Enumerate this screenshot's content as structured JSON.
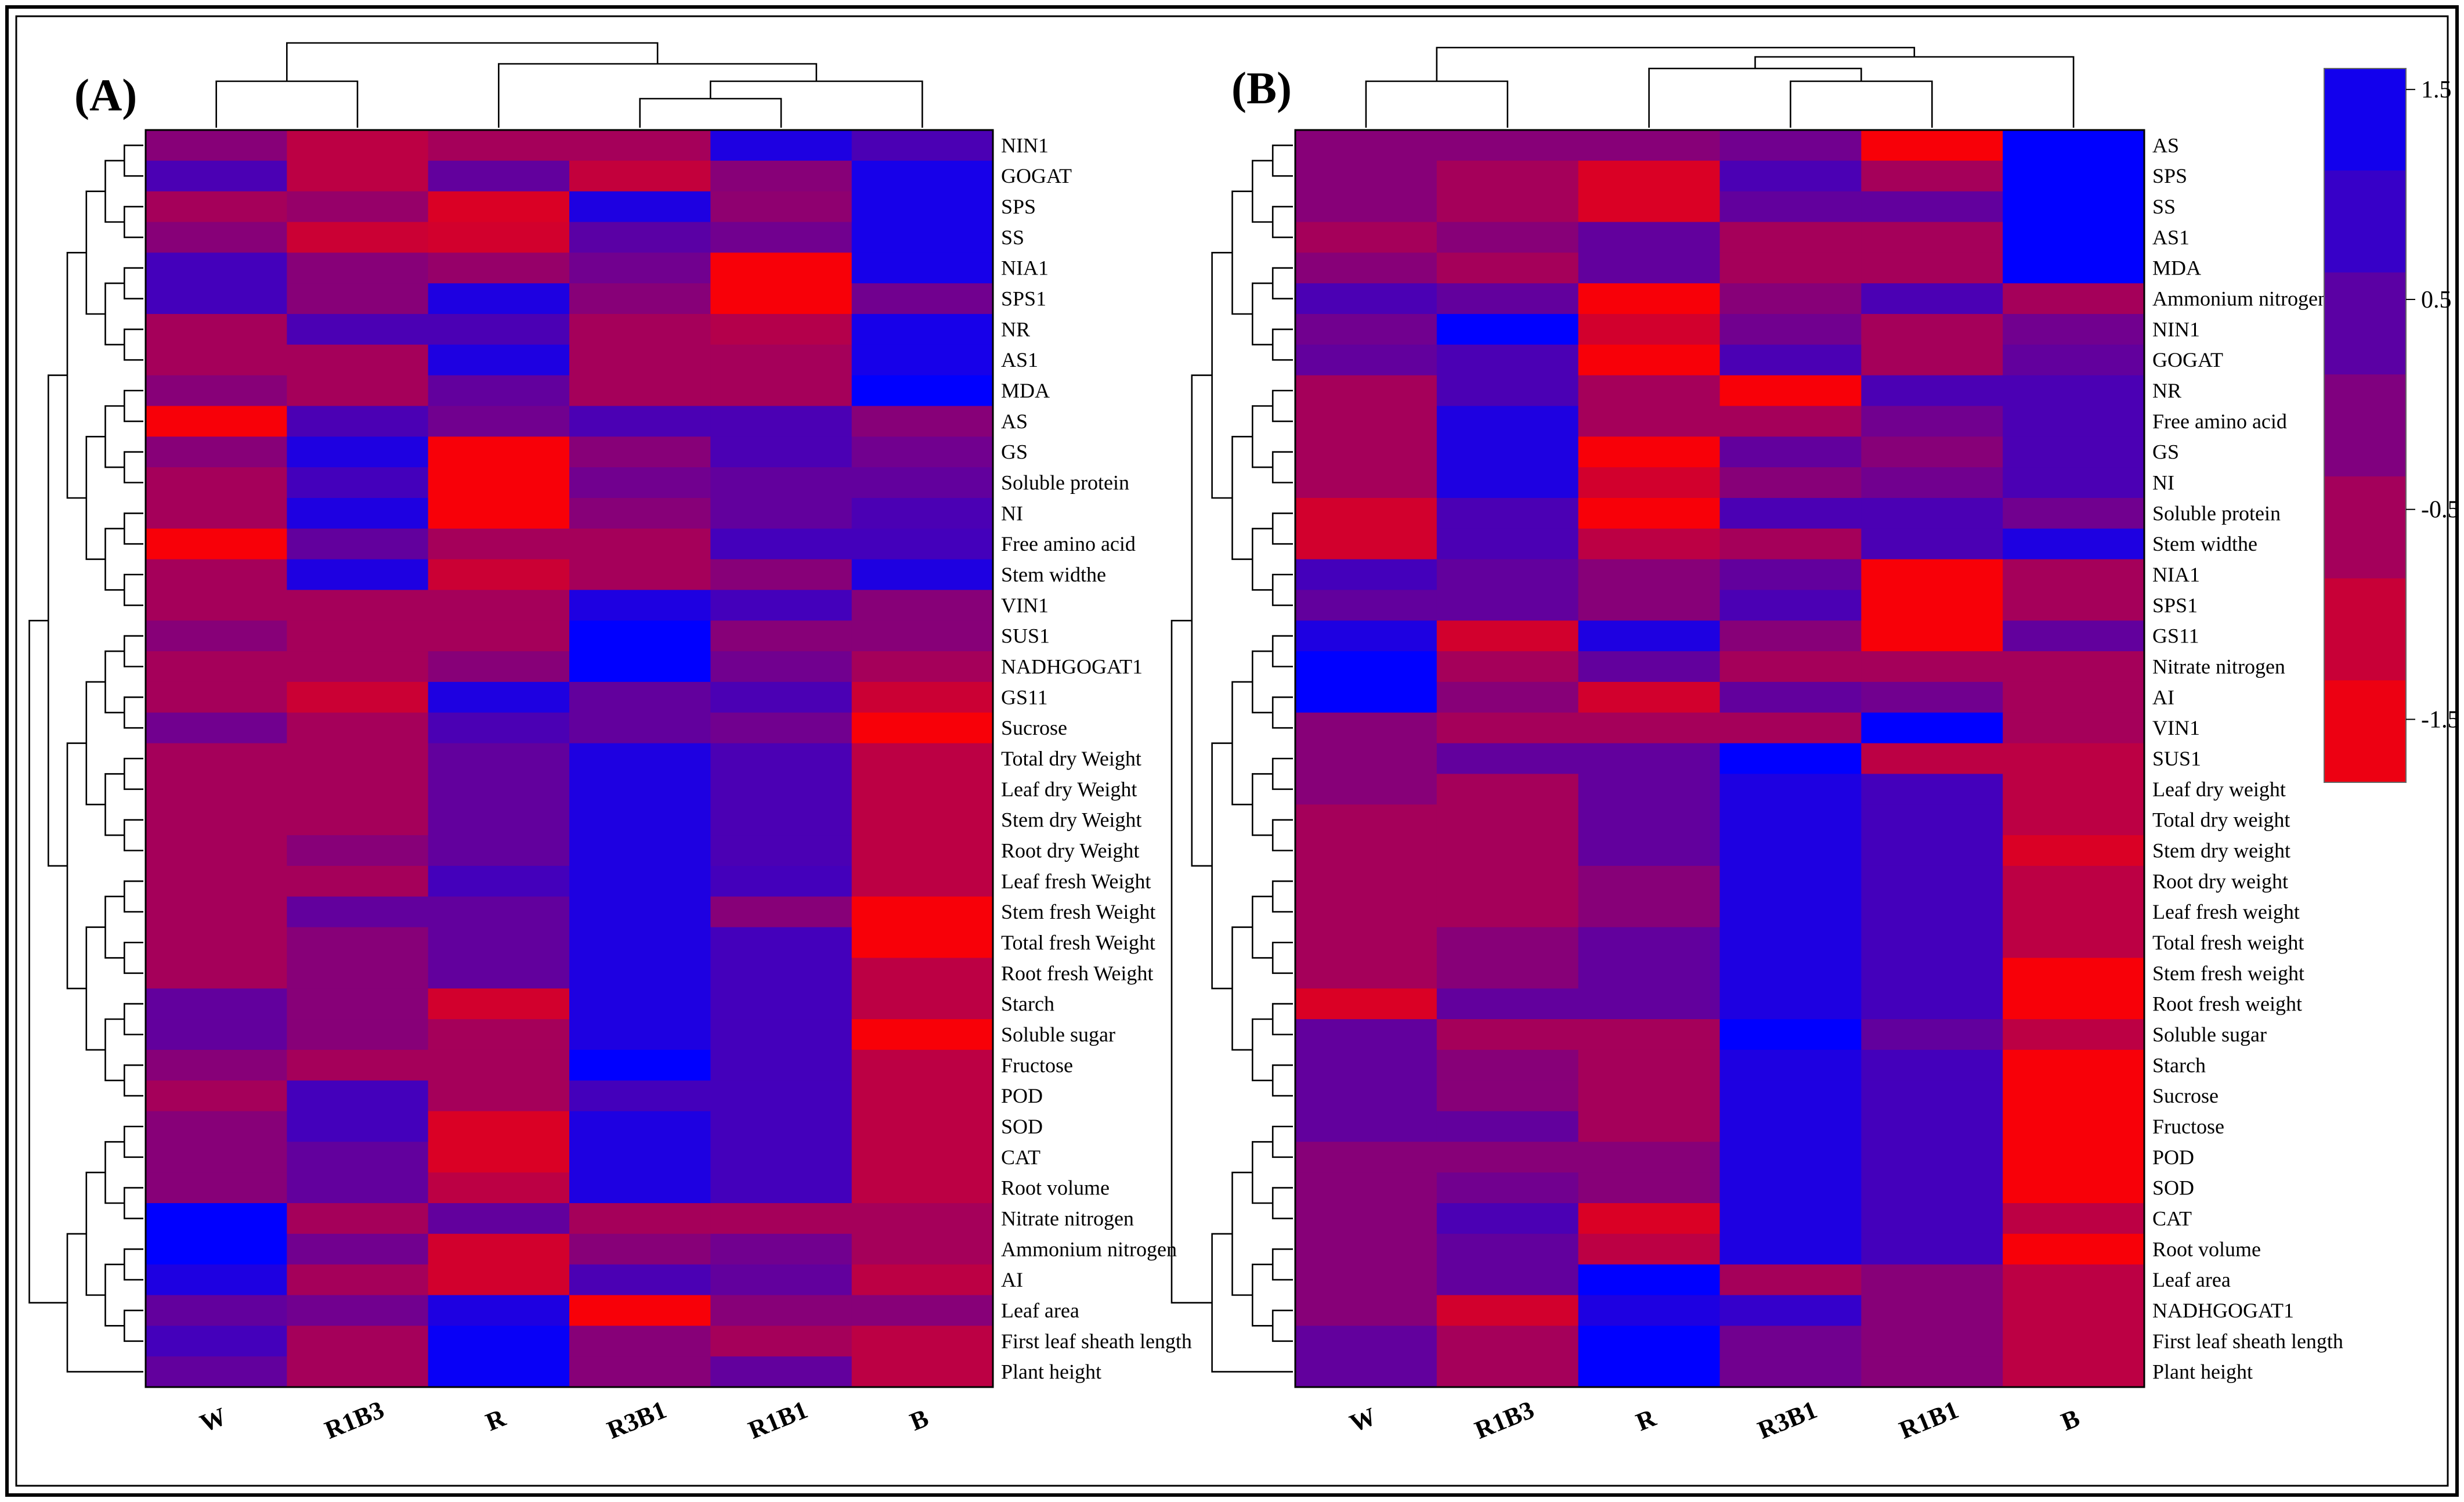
{
  "chart_data": [
    {
      "type": "heatmap",
      "panel_label": "(A)",
      "columns": [
        "W",
        "R1B3",
        "R",
        "R3B1",
        "R1B1",
        "B"
      ],
      "rows": [
        {
          "label": "NIN1",
          "values": [
            -0.2,
            -0.9,
            -0.6,
            -0.6,
            1.2,
            0.6
          ]
        },
        {
          "label": "GOGAT",
          "values": [
            0.6,
            -0.9,
            0.3,
            -1.0,
            -0.2,
            1.3
          ]
        },
        {
          "label": "SPS",
          "values": [
            -0.6,
            -0.4,
            -1.3,
            1.2,
            -0.3,
            1.3
          ]
        },
        {
          "label": "SS",
          "values": [
            -0.2,
            -1.1,
            -1.2,
            0.4,
            0.1,
            1.3
          ]
        },
        {
          "label": "NIA1",
          "values": [
            0.7,
            -0.2,
            -0.4,
            0.1,
            -1.7,
            1.3
          ]
        },
        {
          "label": "SPS1",
          "values": [
            0.7,
            -0.2,
            1.2,
            -0.2,
            -1.7,
            0.1
          ]
        },
        {
          "label": "NR",
          "values": [
            -0.6,
            0.6,
            0.6,
            -0.6,
            -0.8,
            1.3
          ]
        },
        {
          "label": "AS1",
          "values": [
            -0.6,
            -0.6,
            1.2,
            -0.6,
            -0.6,
            1.3
          ]
        },
        {
          "label": "MDA",
          "values": [
            -0.2,
            -0.6,
            0.3,
            -0.6,
            -0.6,
            1.6
          ]
        },
        {
          "label": "AS",
          "values": [
            -1.7,
            0.6,
            0.1,
            0.6,
            0.6,
            -0.2
          ]
        },
        {
          "label": "GS",
          "values": [
            -0.2,
            1.2,
            -1.7,
            -0.2,
            0.6,
            0.1
          ]
        },
        {
          "label": "Soluble protein",
          "values": [
            -0.6,
            0.7,
            -1.7,
            0.1,
            0.3,
            0.3
          ]
        },
        {
          "label": "NI",
          "values": [
            -0.6,
            1.2,
            -1.7,
            -0.2,
            0.3,
            0.6
          ]
        },
        {
          "label": "Free amino acid",
          "values": [
            -1.7,
            0.3,
            -0.6,
            -0.6,
            0.7,
            0.7
          ]
        },
        {
          "label": "Stem widthe",
          "values": [
            -0.6,
            1.2,
            -1.1,
            -0.6,
            -0.2,
            1.2
          ]
        },
        {
          "label": "VIN1",
          "values": [
            -0.6,
            -0.6,
            -0.6,
            1.2,
            0.7,
            -0.2
          ]
        },
        {
          "label": "SUS1",
          "values": [
            -0.2,
            -0.6,
            -0.6,
            1.6,
            -0.2,
            -0.2
          ]
        },
        {
          "label": "NADHGOGAT1",
          "values": [
            -0.6,
            -0.6,
            -0.2,
            1.6,
            0.1,
            -0.6
          ]
        },
        {
          "label": "GS11",
          "values": [
            -0.6,
            -1.1,
            1.2,
            0.3,
            0.6,
            -1.1
          ]
        },
        {
          "label": "Sucrose",
          "values": [
            0.1,
            -0.6,
            0.6,
            0.3,
            0.1,
            -1.7
          ]
        },
        {
          "label": "Total dry Weight",
          "values": [
            -0.6,
            -0.6,
            0.3,
            1.2,
            0.6,
            -0.9
          ]
        },
        {
          "label": "Leaf dry Weight",
          "values": [
            -0.6,
            -0.6,
            0.3,
            1.2,
            0.6,
            -0.9
          ]
        },
        {
          "label": "Stem dry Weight",
          "values": [
            -0.6,
            -0.6,
            0.3,
            1.2,
            0.6,
            -0.9
          ]
        },
        {
          "label": "Root dry Weight",
          "values": [
            -0.6,
            -0.2,
            0.3,
            1.2,
            0.6,
            -0.9
          ]
        },
        {
          "label": "Leaf fresh Weight",
          "values": [
            -0.6,
            -0.6,
            0.7,
            1.2,
            0.7,
            -0.9
          ]
        },
        {
          "label": "Stem fresh Weight",
          "values": [
            -0.6,
            0.3,
            0.3,
            1.2,
            -0.2,
            -1.7
          ]
        },
        {
          "label": "Total fresh Weight",
          "values": [
            -0.6,
            -0.2,
            0.3,
            1.2,
            0.7,
            -1.7
          ]
        },
        {
          "label": "Root fresh Weight",
          "values": [
            -0.6,
            -0.2,
            0.3,
            1.2,
            0.7,
            -0.9
          ]
        },
        {
          "label": "Starch",
          "values": [
            0.3,
            -0.2,
            -1.2,
            1.2,
            0.7,
            -0.9
          ]
        },
        {
          "label": "Soluble sugar",
          "values": [
            0.3,
            -0.2,
            -0.6,
            1.2,
            0.7,
            -1.7
          ]
        },
        {
          "label": "Fructose",
          "values": [
            -0.2,
            -0.6,
            -0.6,
            1.6,
            0.7,
            -0.9
          ]
        },
        {
          "label": "POD",
          "values": [
            -0.6,
            0.7,
            -0.6,
            0.7,
            0.7,
            -0.9
          ]
        },
        {
          "label": "SOD",
          "values": [
            -0.2,
            0.7,
            -1.3,
            1.2,
            0.7,
            -0.9
          ]
        },
        {
          "label": "CAT",
          "values": [
            -0.2,
            0.3,
            -1.3,
            1.2,
            0.7,
            -0.9
          ]
        },
        {
          "label": "Root volume",
          "values": [
            -0.2,
            0.3,
            -0.9,
            1.2,
            0.7,
            -0.9
          ]
        },
        {
          "label": "Nitrate nitrogen",
          "values": [
            1.6,
            -0.6,
            0.3,
            -0.6,
            -0.6,
            -0.6
          ]
        },
        {
          "label": "Ammonium nitrogen",
          "values": [
            1.6,
            0.1,
            -1.2,
            -0.2,
            0.1,
            -0.6
          ]
        },
        {
          "label": "AI",
          "values": [
            1.2,
            -0.6,
            -1.2,
            0.6,
            0.3,
            -0.9
          ]
        },
        {
          "label": "Leaf area",
          "values": [
            0.3,
            0.1,
            1.2,
            -1.7,
            -0.2,
            -0.2
          ]
        },
        {
          "label": "First leaf sheath length",
          "values": [
            0.7,
            -0.6,
            1.5,
            -0.2,
            -0.6,
            -0.9
          ]
        },
        {
          "label": "Plant height",
          "values": [
            0.3,
            -0.6,
            1.5,
            -0.2,
            0.3,
            -0.9
          ]
        }
      ]
    },
    {
      "type": "heatmap",
      "panel_label": "(B)",
      "columns": [
        "W",
        "R1B3",
        "R",
        "R3B1",
        "R1B1",
        "B"
      ],
      "rows": [
        {
          "label": "AS",
          "values": [
            -0.2,
            -0.2,
            -0.2,
            0.1,
            -1.7,
            1.6
          ]
        },
        {
          "label": "SPS",
          "values": [
            -0.2,
            -0.6,
            -1.3,
            0.6,
            -0.6,
            1.6
          ]
        },
        {
          "label": "SS",
          "values": [
            -0.2,
            -0.6,
            -1.3,
            0.3,
            0.3,
            1.6
          ]
        },
        {
          "label": "AS1",
          "values": [
            -0.6,
            -0.2,
            0.3,
            -0.6,
            -0.6,
            1.6
          ]
        },
        {
          "label": "MDA",
          "values": [
            -0.2,
            -0.6,
            0.3,
            -0.6,
            -0.6,
            1.6
          ]
        },
        {
          "label": "Ammonium nitrogen",
          "values": [
            0.6,
            0.3,
            -1.7,
            -0.2,
            0.6,
            -0.6
          ]
        },
        {
          "label": "NIN1",
          "values": [
            0.1,
            1.6,
            -1.2,
            0.1,
            -0.6,
            0.1
          ]
        },
        {
          "label": "GOGAT",
          "values": [
            0.3,
            0.6,
            -1.7,
            0.6,
            -0.6,
            0.3
          ]
        },
        {
          "label": "NR",
          "values": [
            -0.6,
            0.6,
            -0.6,
            -1.7,
            0.6,
            0.6
          ]
        },
        {
          "label": "Free amino acid",
          "values": [
            -0.6,
            1.2,
            -0.6,
            -0.6,
            0.1,
            0.6
          ]
        },
        {
          "label": "GS",
          "values": [
            -0.6,
            1.2,
            -1.7,
            0.3,
            -0.2,
            0.6
          ]
        },
        {
          "label": "NI",
          "values": [
            -0.6,
            1.2,
            -1.2,
            -0.2,
            0.1,
            0.6
          ]
        },
        {
          "label": "Soluble protein",
          "values": [
            -1.2,
            0.6,
            -1.7,
            0.6,
            0.6,
            0.1
          ]
        },
        {
          "label": "Stem widthe",
          "values": [
            -1.2,
            0.6,
            -0.9,
            -0.6,
            0.6,
            1.2
          ]
        },
        {
          "label": "NIA1",
          "values": [
            0.7,
            0.3,
            -0.2,
            0.3,
            -1.7,
            -0.6
          ]
        },
        {
          "label": "SPS1",
          "values": [
            0.3,
            0.3,
            -0.2,
            0.6,
            -1.7,
            -0.6
          ]
        },
        {
          "label": "GS11",
          "values": [
            1.2,
            -1.2,
            1.2,
            -0.2,
            -1.7,
            0.3
          ]
        },
        {
          "label": "Nitrate nitrogen",
          "values": [
            1.6,
            -0.6,
            0.3,
            -0.6,
            -0.6,
            -0.6
          ]
        },
        {
          "label": "AI",
          "values": [
            1.6,
            -0.2,
            -1.2,
            0.3,
            0.1,
            -0.6
          ]
        },
        {
          "label": "VIN1",
          "values": [
            -0.2,
            -0.6,
            -0.6,
            -0.6,
            1.6,
            -0.6
          ]
        },
        {
          "label": "SUS1",
          "values": [
            -0.2,
            0.3,
            0.3,
            1.6,
            -0.9,
            -0.9
          ]
        },
        {
          "label": "Leaf dry weight",
          "values": [
            -0.2,
            -0.6,
            0.3,
            1.2,
            0.7,
            -0.9
          ]
        },
        {
          "label": "Total dry weight",
          "values": [
            -0.6,
            -0.6,
            0.3,
            1.2,
            0.7,
            -0.9
          ]
        },
        {
          "label": "Stem dry weight",
          "values": [
            -0.6,
            -0.6,
            0.3,
            1.2,
            0.7,
            -1.3
          ]
        },
        {
          "label": "Root dry weight",
          "values": [
            -0.6,
            -0.6,
            -0.2,
            1.2,
            0.7,
            -0.9
          ]
        },
        {
          "label": "Leaf fresh weight",
          "values": [
            -0.6,
            -0.6,
            -0.2,
            1.2,
            0.7,
            -0.9
          ]
        },
        {
          "label": "Total fresh weight",
          "values": [
            -0.6,
            -0.2,
            0.3,
            1.2,
            0.7,
            -0.9
          ]
        },
        {
          "label": "Stem fresh weight",
          "values": [
            -0.6,
            -0.2,
            0.3,
            1.2,
            0.7,
            -1.7
          ]
        },
        {
          "label": "Root fresh weight",
          "values": [
            -1.3,
            0.3,
            0.3,
            1.2,
            0.7,
            -1.7
          ]
        },
        {
          "label": "Soluble sugar",
          "values": [
            0.3,
            -0.6,
            -0.6,
            1.6,
            0.3,
            -0.9
          ]
        },
        {
          "label": "Starch",
          "values": [
            0.3,
            -0.2,
            -0.6,
            1.2,
            0.7,
            -1.7
          ]
        },
        {
          "label": "Sucrose",
          "values": [
            0.3,
            -0.2,
            -0.6,
            1.2,
            0.7,
            -1.7
          ]
        },
        {
          "label": "Fructose",
          "values": [
            0.3,
            0.3,
            -0.6,
            1.2,
            0.7,
            -1.7
          ]
        },
        {
          "label": "POD",
          "values": [
            -0.2,
            -0.2,
            -0.2,
            1.2,
            0.7,
            -1.7
          ]
        },
        {
          "label": "SOD",
          "values": [
            -0.2,
            0.1,
            -0.2,
            1.2,
            0.7,
            -1.7
          ]
        },
        {
          "label": "CAT",
          "values": [
            -0.2,
            0.6,
            -1.3,
            1.2,
            0.7,
            -0.9
          ]
        },
        {
          "label": "Root volume",
          "values": [
            -0.2,
            0.3,
            -0.9,
            1.2,
            0.7,
            -1.7
          ]
        },
        {
          "label": "Leaf area",
          "values": [
            -0.2,
            0.3,
            1.6,
            -0.6,
            -0.2,
            -0.9
          ]
        },
        {
          "label": "NADHGOGAT1",
          "values": [
            -0.2,
            -1.2,
            1.2,
            0.9,
            -0.2,
            -0.9
          ]
        },
        {
          "label": "First leaf sheath length",
          "values": [
            0.3,
            -0.6,
            1.6,
            0.1,
            -0.2,
            -0.9
          ]
        },
        {
          "label": "Plant height",
          "values": [
            0.3,
            -0.6,
            1.6,
            0.1,
            -0.2,
            -0.9
          ]
        }
      ]
    }
  ],
  "color_scale": {
    "min": -1.8,
    "max": 1.6,
    "low_color": "#ff0000",
    "high_color": "#0000ff",
    "ticks": [
      "1.5",
      "0.5",
      "-0.5",
      "-1.5"
    ],
    "tick_values": [
      1.5,
      0.5,
      -0.5,
      -1.5
    ]
  }
}
